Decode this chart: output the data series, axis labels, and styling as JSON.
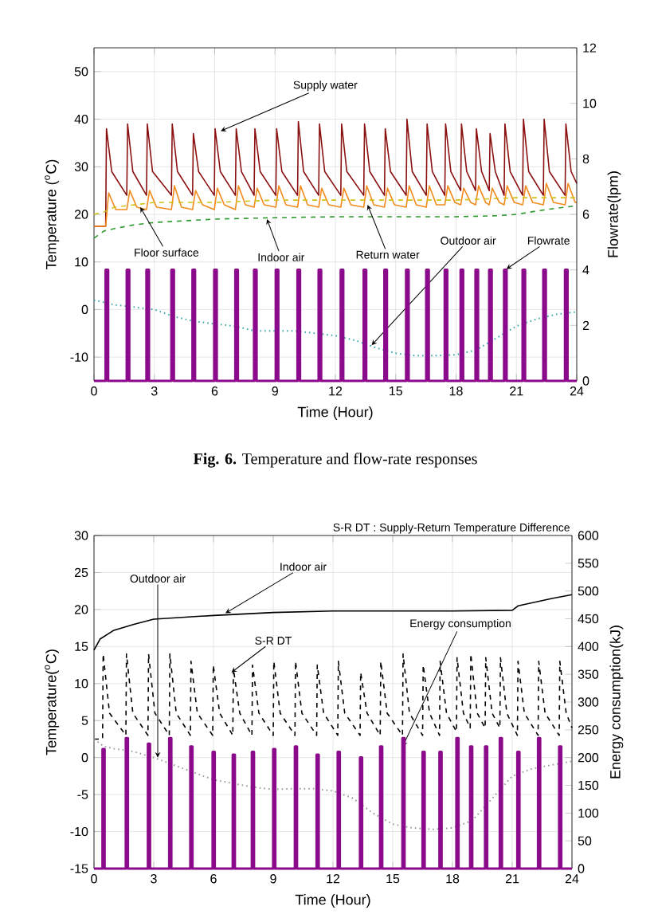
{
  "chart_data": [
    {
      "type": "line",
      "xlabel": "Time (Hour)",
      "ylabel": "Temperature ($^{o}$C)",
      "y2label": "Flowrate(lpm)",
      "xlim": [
        0,
        24
      ],
      "xticks": [
        0,
        3,
        6,
        9,
        12,
        15,
        18,
        21,
        24
      ],
      "ylim": [
        -15,
        55
      ],
      "yticks": [
        -10,
        0,
        10,
        20,
        30,
        40,
        50
      ],
      "y2lim": [
        0,
        12
      ],
      "y2ticks": [
        0,
        2,
        4,
        6,
        8,
        10,
        12
      ],
      "grid": true,
      "annotations": [
        "**Fig. 6.** Temperature and flow-rate responses"
      ],
      "series": [
        {
          "name": "Supply water",
          "color": "#8b1010",
          "line_style": "solid",
          "x": [
            0,
            0.58,
            0.62,
            0.88,
            1.63,
            1.67,
            1.93,
            2.61,
            2.65,
            2.91,
            3.85,
            3.89,
            4.15,
            4.9,
            4.94,
            5.2,
            5.98,
            6.02,
            6.28,
            7.03,
            7.07,
            7.33,
            7.96,
            8.0,
            8.26,
            9.04,
            9.08,
            9.34,
            10.12,
            10.16,
            10.42,
            11.17,
            11.21,
            11.47,
            12.27,
            12.31,
            12.57,
            13.41,
            13.45,
            13.71,
            14.44,
            14.48,
            14.74,
            15.52,
            15.56,
            15.82,
            16.52,
            16.56,
            16.82,
            17.44,
            17.48,
            17.74,
            18.23,
            18.27,
            18.53,
            18.97,
            19.01,
            19.27,
            19.65,
            19.69,
            19.95,
            20.39,
            20.43,
            20.69,
            21.31,
            21.35,
            21.61,
            22.34,
            22.38,
            22.64,
            23.42,
            23.46,
            23.72,
            24
          ],
          "values": [
            17.5,
            17.5,
            38,
            29,
            24,
            39,
            29,
            24,
            39,
            29,
            24,
            39,
            29,
            24,
            37,
            29,
            24,
            38,
            29,
            24,
            38,
            29,
            24,
            38,
            29,
            24,
            38,
            29,
            24,
            39.5,
            29,
            24,
            39,
            29,
            24,
            39,
            29,
            24,
            39,
            29,
            24,
            38,
            29,
            24,
            40,
            29,
            24,
            39,
            29,
            24,
            39,
            29,
            25,
            39,
            29,
            25,
            38,
            29,
            25,
            37,
            29,
            24,
            39,
            29,
            24,
            40,
            29,
            24,
            40,
            29,
            24,
            39,
            29,
            26.5
          ]
        },
        {
          "name": "Return water",
          "color": "#f28a1c",
          "line_style": "solid",
          "x": [
            0,
            0.58,
            0.73,
            1.08,
            1.63,
            1.78,
            2.13,
            2.61,
            2.76,
            3.11,
            3.85,
            4.0,
            4.35,
            4.9,
            5.05,
            5.4,
            5.98,
            6.13,
            6.48,
            7.03,
            7.18,
            7.53,
            7.96,
            8.11,
            8.46,
            9.04,
            9.19,
            9.54,
            10.12,
            10.27,
            10.62,
            11.17,
            11.32,
            11.67,
            12.27,
            12.42,
            12.77,
            13.41,
            13.56,
            13.91,
            14.44,
            14.59,
            14.94,
            15.52,
            15.67,
            16.02,
            16.52,
            16.67,
            17.02,
            17.44,
            17.59,
            17.94,
            18.23,
            18.38,
            18.73,
            18.97,
            19.12,
            19.47,
            19.65,
            19.8,
            20.15,
            20.39,
            20.54,
            20.89,
            21.31,
            21.46,
            21.81,
            22.34,
            22.49,
            22.84,
            23.42,
            23.57,
            23.92,
            24
          ],
          "values": [
            17.5,
            17.5,
            24.5,
            21,
            21,
            25,
            21.5,
            21,
            25,
            21.5,
            21,
            26,
            21.5,
            21,
            25,
            22,
            21,
            25.5,
            22,
            21,
            26,
            22,
            21.5,
            25.5,
            22,
            21.5,
            26,
            22,
            21.5,
            26,
            22,
            21.5,
            25.5,
            22,
            21.5,
            25.5,
            22,
            21.5,
            26,
            22,
            21.5,
            25.5,
            22,
            21.5,
            26,
            22,
            21.5,
            26,
            22,
            22,
            26,
            22.5,
            22,
            25.5,
            22.5,
            22,
            26,
            22.5,
            22,
            25.5,
            22.5,
            22,
            26,
            22.5,
            22,
            26,
            22.5,
            22,
            26.5,
            22.5,
            22,
            26.5,
            22.5,
            22.5
          ]
        },
        {
          "name": "Floor surface",
          "color": "#cfc214",
          "line_style": "dashed",
          "x": [
            0,
            0.5,
            1,
            2,
            3,
            6,
            9,
            12,
            15,
            18,
            21,
            24
          ],
          "values": [
            20,
            20.5,
            21.5,
            22,
            22.5,
            22.5,
            23,
            23,
            23,
            23,
            23.5,
            23.5
          ]
        },
        {
          "name": "Indoor air",
          "color": "#2e9a2e",
          "line_style": "dashed",
          "x": [
            0,
            0.5,
            1,
            2,
            3,
            6,
            9,
            12,
            15,
            18,
            20,
            21,
            22,
            23,
            24
          ],
          "values": [
            15,
            16.5,
            17,
            17.8,
            18.3,
            19,
            19.3,
            19.5,
            19.5,
            19.5,
            19.7,
            20,
            20.7,
            21.3,
            21.8
          ]
        },
        {
          "name": "Outdoor air",
          "color": "#3aa8a8",
          "line_style": "dotted",
          "x": [
            0,
            0.5,
            1,
            2,
            3,
            4,
            5,
            6,
            7,
            8,
            9,
            10,
            11,
            12,
            13,
            14,
            15,
            16,
            17,
            18,
            19,
            20,
            21,
            22,
            23,
            24
          ],
          "values": [
            2,
            1.5,
            1,
            0.5,
            0,
            -1.5,
            -2.5,
            -3,
            -3.5,
            -4.5,
            -4.5,
            -4.5,
            -5,
            -5.5,
            -6.5,
            -8,
            -9.2,
            -9.7,
            -9.7,
            -9.5,
            -8.5,
            -6,
            -3.5,
            -2,
            -1,
            -0.5
          ]
        },
        {
          "name": "Flowrate",
          "type": "step",
          "axis": "y2",
          "color": "#8b0a8b",
          "line_style": "solid",
          "x": [
            0,
            0.58,
            0.7,
            1.63,
            1.75,
            2.61,
            2.73,
            3.85,
            3.97,
            4.9,
            5.02,
            5.98,
            6.1,
            7.03,
            7.15,
            7.96,
            8.08,
            9.04,
            9.16,
            10.12,
            10.24,
            11.17,
            11.29,
            12.27,
            12.39,
            13.41,
            13.53,
            14.44,
            14.56,
            15.52,
            15.64,
            16.52,
            16.64,
            17.44,
            17.56,
            18.23,
            18.35,
            18.97,
            19.09,
            19.65,
            19.77,
            20.39,
            20.51,
            21.31,
            21.43,
            22.34,
            22.46,
            23.42,
            23.54,
            24
          ],
          "values": [
            0,
            4,
            0,
            4,
            0,
            4,
            0,
            4,
            0,
            4,
            0,
            4,
            0,
            4,
            0,
            4,
            0,
            4,
            0,
            4,
            0,
            4,
            0,
            4,
            0,
            4,
            0,
            4,
            0,
            4,
            0,
            4,
            0,
            4,
            0,
            4,
            0,
            4,
            0,
            4,
            0,
            4,
            0,
            4,
            0,
            4,
            0,
            4,
            0,
            0
          ]
        }
      ]
    },
    {
      "type": "line",
      "xlabel": "Time (Hour)",
      "ylabel": "Temperature($^{o}$C)",
      "y2label": "Energy consumption(kJ)",
      "xlim": [
        0,
        24
      ],
      "xticks": [
        0,
        3,
        6,
        9,
        12,
        15,
        18,
        21,
        24
      ],
      "ylim": [
        -15,
        30
      ],
      "yticks": [
        -15,
        -10,
        -5,
        0,
        5,
        10,
        15,
        20,
        25,
        30
      ],
      "y2lim": [
        0,
        600
      ],
      "y2ticks": [
        0,
        50,
        100,
        150,
        200,
        250,
        300,
        350,
        400,
        450,
        500,
        550,
        600
      ],
      "grid": true,
      "annotations": [
        "S-R DT : Supply-Return Temperature Difference"
      ],
      "series": [
        {
          "name": "Indoor air",
          "color": "#000000",
          "line_style": "solid",
          "x": [
            0,
            0.3,
            1,
            2,
            3,
            6,
            9,
            12,
            15,
            18,
            21,
            21.3,
            23,
            24
          ],
          "values": [
            14.5,
            16,
            17.2,
            18,
            18.7,
            19.2,
            19.6,
            19.8,
            19.8,
            19.8,
            19.9,
            20.5,
            21.5,
            22
          ]
        },
        {
          "name": "S-R DT",
          "color": "#000000",
          "line_style": "dashed",
          "x": [
            0,
            0.43,
            0.46,
            0.78,
            1.6,
            1.63,
            1.95,
            2.71,
            2.74,
            3.06,
            3.78,
            3.81,
            4.13,
            4.84,
            4.87,
            5.19,
            5.96,
            5.99,
            6.31,
            6.97,
            7.0,
            7.32,
            7.93,
            7.96,
            8.28,
            9.0,
            9.03,
            9.35,
            10.09,
            10.12,
            10.44,
            11.18,
            11.21,
            11.53,
            12.24,
            12.27,
            12.59,
            13.36,
            13.39,
            13.71,
            14.37,
            14.4,
            14.72,
            15.49,
            15.52,
            15.84,
            16.5,
            16.53,
            16.85,
            17.35,
            17.38,
            17.7,
            18.2,
            18.23,
            18.55,
            18.89,
            18.92,
            19.24,
            19.64,
            19.67,
            19.99,
            20.38,
            20.41,
            20.73,
            21.26,
            21.29,
            21.61,
            22.3,
            22.33,
            22.65,
            23.36,
            23.39,
            23.71,
            24
          ],
          "values": [
            2.5,
            2.5,
            14,
            6,
            3,
            14,
            6,
            3,
            14,
            6,
            3,
            14,
            6,
            3,
            13,
            6,
            3,
            12.5,
            6,
            3,
            12,
            6,
            3,
            12.5,
            6,
            3,
            13,
            6,
            3,
            13,
            6,
            3,
            12.5,
            6,
            3,
            13,
            6,
            3,
            11.5,
            6,
            3,
            13,
            6,
            3,
            14,
            6,
            3,
            12.5,
            6,
            3,
            13,
            6,
            3.5,
            13.5,
            6,
            4,
            14,
            6,
            4,
            13.5,
            6,
            4,
            13.5,
            6,
            3,
            13,
            6,
            3,
            13,
            6,
            3,
            13,
            6,
            4
          ]
        },
        {
          "name": "Outdoor air",
          "color": "#9a9a9a",
          "line_style": "dotted",
          "x": [
            0,
            0.5,
            1,
            2,
            3,
            4,
            5,
            6,
            7,
            8,
            9,
            10,
            11,
            12,
            13,
            14,
            15,
            16,
            17,
            18,
            19,
            20,
            21,
            22,
            23,
            24
          ],
          "values": [
            2.5,
            1.5,
            1.2,
            0.8,
            0,
            -1,
            -2,
            -3,
            -3.5,
            -4,
            -4.3,
            -4.2,
            -4.2,
            -4.5,
            -5.5,
            -7.5,
            -9,
            -9.5,
            -9.7,
            -9.5,
            -8.5,
            -5.5,
            -2.5,
            -1.5,
            -1,
            -0.5
          ]
        },
        {
          "name": "Energy consumption",
          "type": "step",
          "axis": "y2",
          "color": "#8b0a8b",
          "line_style": "solid",
          "x": [
            0,
            0.43,
            0.53,
            1.6,
            1.7,
            2.71,
            2.81,
            3.78,
            3.88,
            4.84,
            4.94,
            5.96,
            6.06,
            6.97,
            7.07,
            7.93,
            8.03,
            9.0,
            9.1,
            10.09,
            10.19,
            11.18,
            11.28,
            12.24,
            12.34,
            13.36,
            13.46,
            14.37,
            14.47,
            15.49,
            15.59,
            16.5,
            16.6,
            17.35,
            17.45,
            18.2,
            18.3,
            18.89,
            18.99,
            19.64,
            19.74,
            20.38,
            20.48,
            21.26,
            21.36,
            22.3,
            22.4,
            23.36,
            23.46,
            24
          ],
          "values": [
            0,
            215,
            0,
            235,
            0,
            225,
            0,
            235,
            0,
            220,
            0,
            210,
            0,
            205,
            0,
            210,
            0,
            215,
            0,
            220,
            0,
            205,
            0,
            210,
            0,
            200,
            0,
            220,
            0,
            235,
            0,
            210,
            0,
            210,
            0,
            235,
            0,
            220,
            0,
            220,
            0,
            235,
            0,
            210,
            0,
            235,
            0,
            220,
            0,
            0
          ]
        }
      ]
    }
  ]
}
